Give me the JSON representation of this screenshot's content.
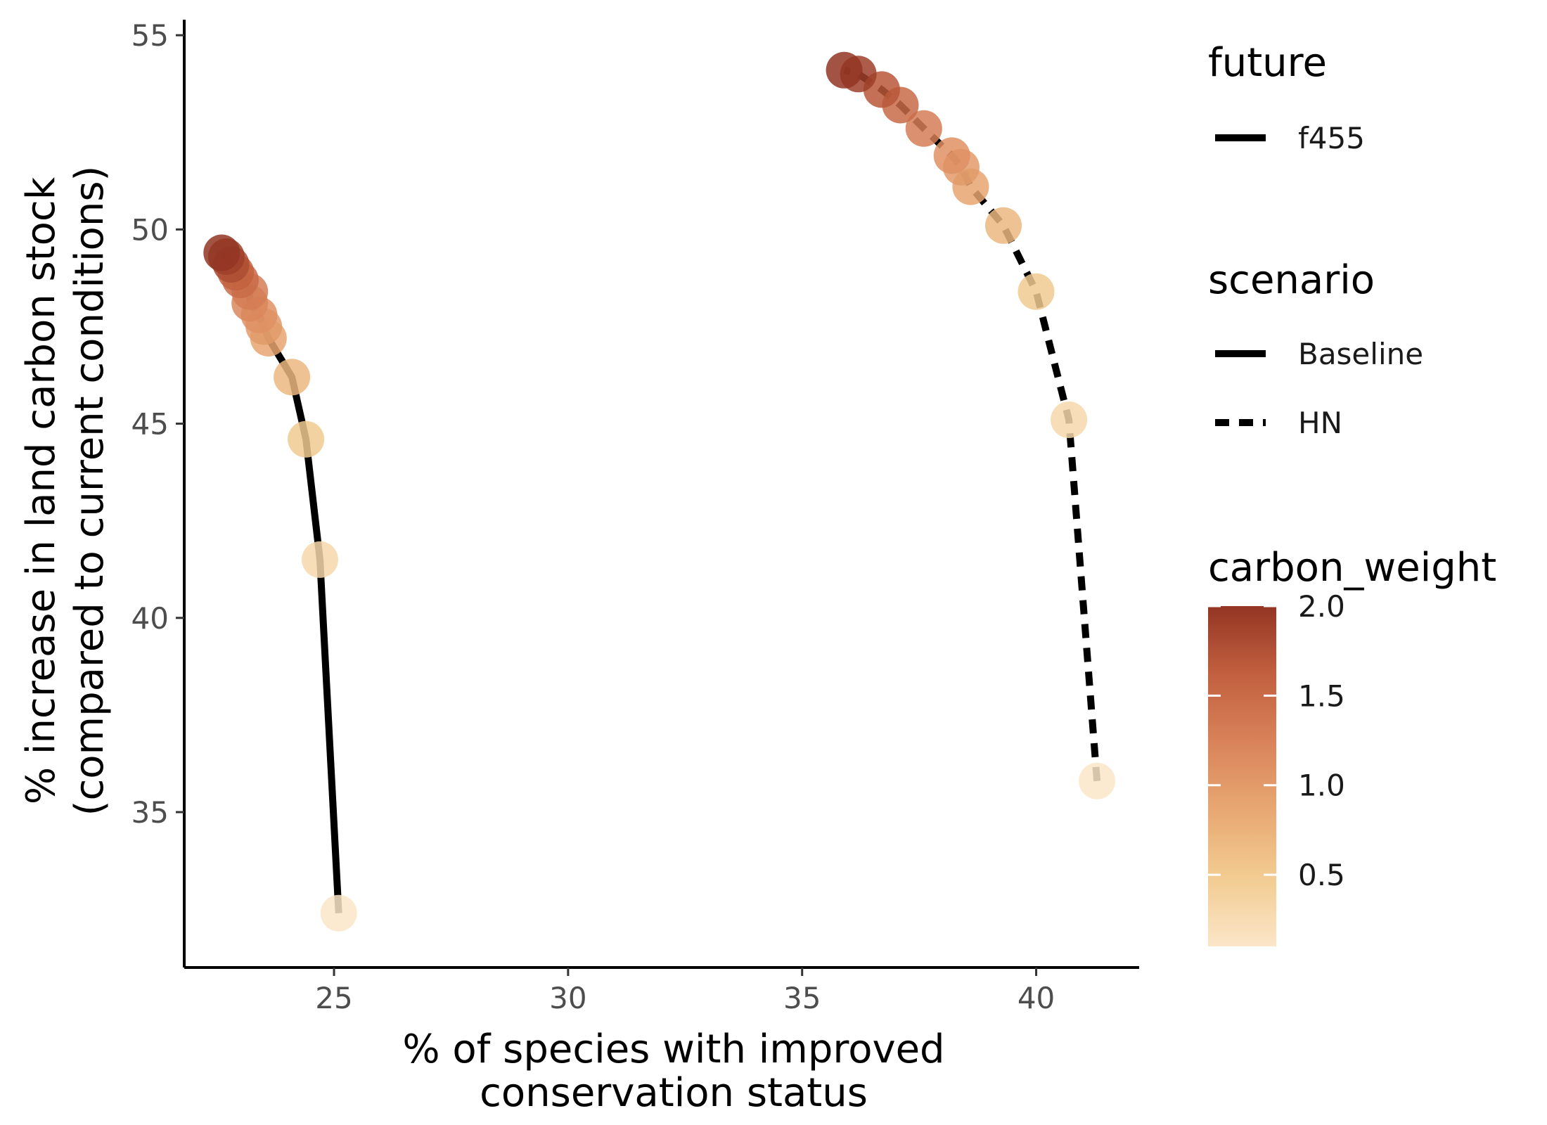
{
  "chart_data": {
    "type": "scatter",
    "xlabel": [
      "% of species with improved",
      "conservation status"
    ],
    "ylabel": [
      "% increase in land carbon stock",
      "(compared to current conditions)"
    ],
    "xlim": [
      21.8,
      42.2
    ],
    "ylim": [
      31.0,
      55.4
    ],
    "xticks": [
      25,
      30,
      35,
      40
    ],
    "yticks": [
      35,
      40,
      45,
      50,
      55
    ],
    "grid": false,
    "legend_position": "right",
    "series": [
      {
        "name": "Baseline",
        "future": "f455",
        "line_style": "solid",
        "points": [
          {
            "x": 25.1,
            "y": 32.4,
            "carbon_weight": 0.1
          },
          {
            "x": 24.7,
            "y": 41.5,
            "carbon_weight": 0.3
          },
          {
            "x": 24.4,
            "y": 44.6,
            "carbon_weight": 0.5
          },
          {
            "x": 24.1,
            "y": 46.2,
            "carbon_weight": 0.7
          },
          {
            "x": 23.6,
            "y": 47.2,
            "carbon_weight": 0.9
          },
          {
            "x": 23.5,
            "y": 47.5,
            "carbon_weight": 1.0
          },
          {
            "x": 23.4,
            "y": 47.8,
            "carbon_weight": 1.1
          },
          {
            "x": 23.2,
            "y": 48.1,
            "carbon_weight": 1.2
          },
          {
            "x": 23.2,
            "y": 48.4,
            "carbon_weight": 1.3
          },
          {
            "x": 23.0,
            "y": 48.7,
            "carbon_weight": 1.5
          },
          {
            "x": 22.9,
            "y": 48.9,
            "carbon_weight": 1.6
          },
          {
            "x": 22.8,
            "y": 49.1,
            "carbon_weight": 1.8
          },
          {
            "x": 22.7,
            "y": 49.3,
            "carbon_weight": 1.9
          },
          {
            "x": 22.6,
            "y": 49.4,
            "carbon_weight": 2.0
          }
        ]
      },
      {
        "name": "HN",
        "future": "f455",
        "line_style": "dashed",
        "points": [
          {
            "x": 41.3,
            "y": 35.8,
            "carbon_weight": 0.1
          },
          {
            "x": 40.7,
            "y": 45.1,
            "carbon_weight": 0.3
          },
          {
            "x": 40.0,
            "y": 48.4,
            "carbon_weight": 0.5
          },
          {
            "x": 39.3,
            "y": 50.1,
            "carbon_weight": 0.7
          },
          {
            "x": 38.6,
            "y": 51.1,
            "carbon_weight": 0.9
          },
          {
            "x": 38.4,
            "y": 51.6,
            "carbon_weight": 1.0
          },
          {
            "x": 38.2,
            "y": 51.9,
            "carbon_weight": 1.1
          },
          {
            "x": 37.6,
            "y": 52.6,
            "carbon_weight": 1.3
          },
          {
            "x": 37.1,
            "y": 53.2,
            "carbon_weight": 1.5
          },
          {
            "x": 36.7,
            "y": 53.6,
            "carbon_weight": 1.7
          },
          {
            "x": 36.2,
            "y": 54.0,
            "carbon_weight": 1.9
          },
          {
            "x": 35.9,
            "y": 54.1,
            "carbon_weight": 2.0
          }
        ]
      }
    ],
    "legend": {
      "future": {
        "title": "future",
        "items": [
          {
            "label": "f455",
            "line_style": "solid"
          }
        ]
      },
      "scenario": {
        "title": "scenario",
        "items": [
          {
            "label": "Baseline",
            "line_style": "solid"
          },
          {
            "label": "HN",
            "line_style": "dashed"
          }
        ]
      },
      "color": {
        "title": "carbon_weight",
        "range": [
          0.1,
          2.0
        ],
        "breaks": [
          0.5,
          1.0,
          1.5,
          2.0
        ],
        "break_labels": [
          "0.5",
          "1.0",
          "1.5",
          "2.0"
        ],
        "colors": [
          "#FBE6C8",
          "#F2CC92",
          "#E8A873",
          "#D9835A",
          "#C2603F",
          "#933523"
        ]
      }
    },
    "point_opacity": 0.85,
    "line_color": "#000000"
  }
}
